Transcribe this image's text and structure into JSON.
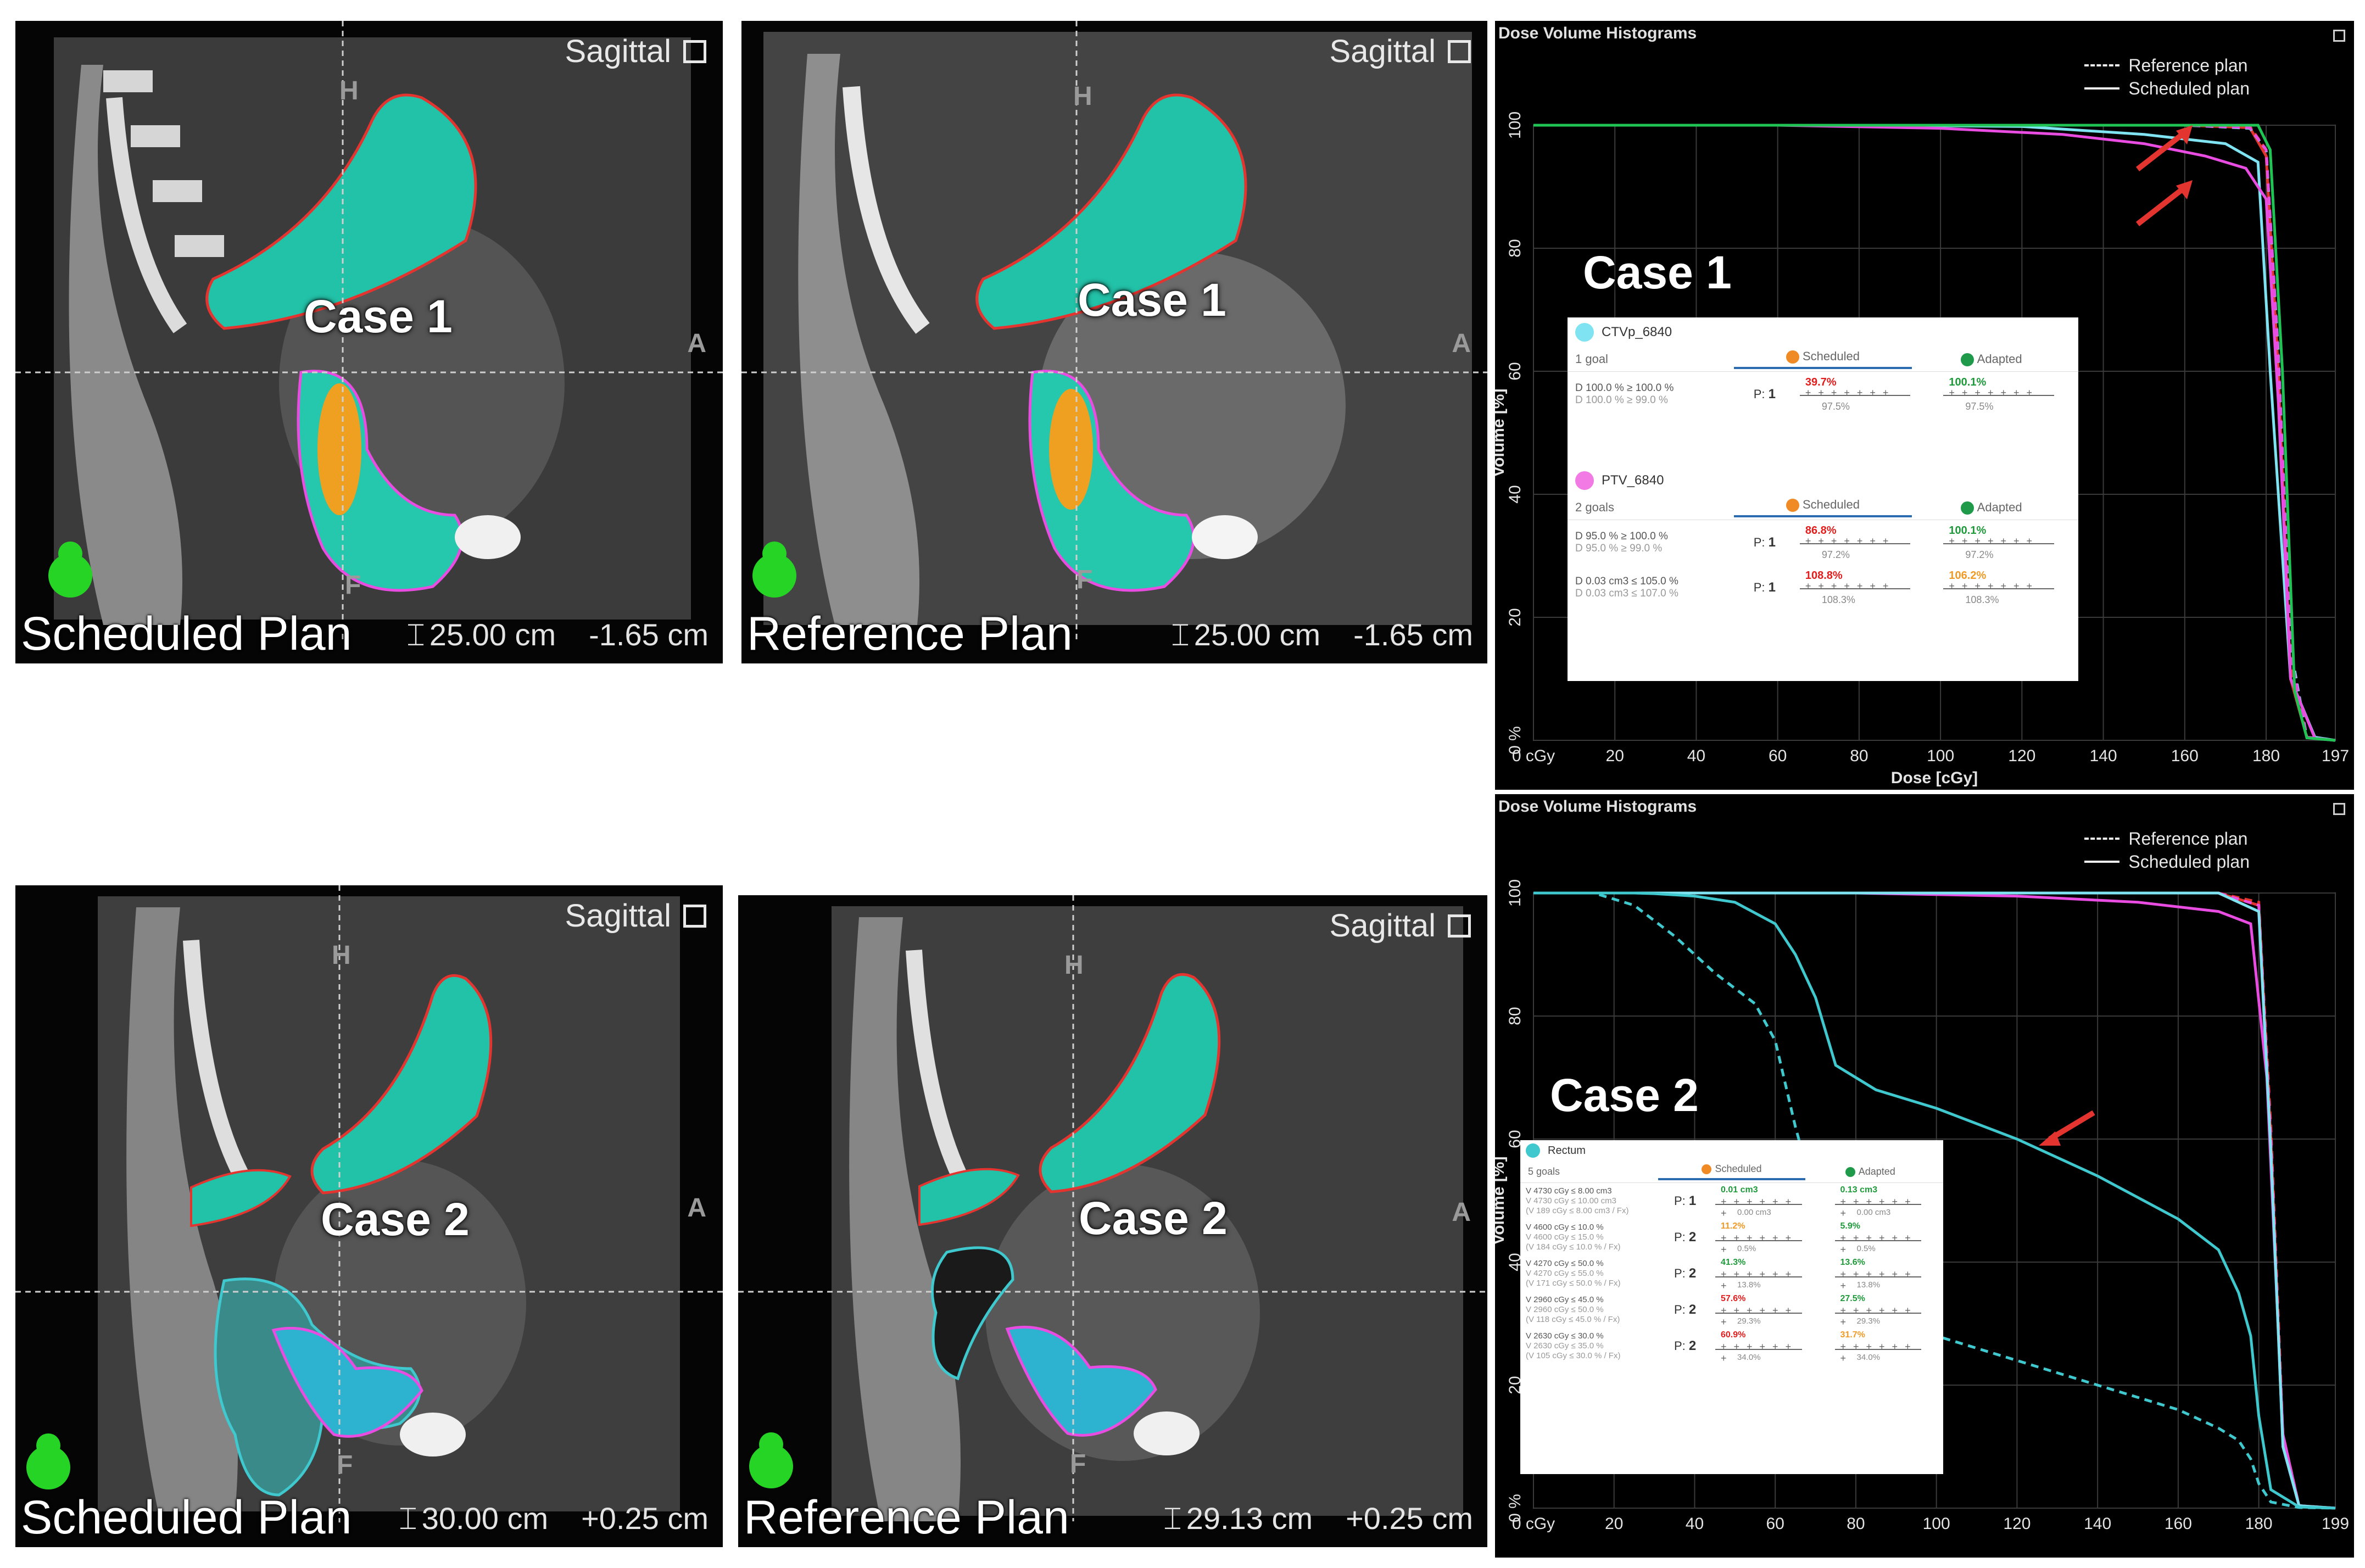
{
  "viewers": [
    {
      "id": "v1",
      "case": "Case 1",
      "viewport": "Sagittal",
      "plan": "Scheduled Plan",
      "slab": "25.00 cm",
      "offset": "-1.65 cm",
      "orient_h": "H",
      "orient_f": "F",
      "orient_a": "A"
    },
    {
      "id": "v2",
      "case": "Case 1",
      "viewport": "Sagittal",
      "plan": "Reference Plan",
      "slab": "25.00 cm",
      "offset": "-1.65 cm",
      "orient_h": "H",
      "orient_f": "F",
      "orient_a": "A"
    },
    {
      "id": "v3",
      "case": "Case 2",
      "viewport": "Sagittal",
      "plan": "Scheduled Plan",
      "slab": "30.00 cm",
      "offset": "+0.25 cm",
      "orient_h": "H",
      "orient_f": "F",
      "orient_a": "A"
    },
    {
      "id": "v4",
      "case": "Case 2",
      "viewport": "Sagittal",
      "plan": "Reference Plan",
      "slab": "29.13 cm",
      "offset": "+0.25 cm",
      "orient_h": "H",
      "orient_f": "F",
      "orient_a": "A"
    }
  ],
  "dvh1": {
    "title": "Dose Volume Histograms",
    "case": "Case 1",
    "legend": {
      "reference": "Reference plan",
      "scheduled": "Scheduled plan"
    },
    "xticks": [
      "0 cGy",
      "20",
      "40",
      "60",
      "80",
      "100",
      "120",
      "140",
      "160",
      "180",
      "197"
    ],
    "yticks": [
      "100",
      "80",
      "60",
      "40",
      "20",
      "0 %"
    ],
    "xlabel": "Dose [cGy]",
    "ylabel": "Volume [%]",
    "goals": [
      {
        "structure": "CTVp_6840",
        "color": "#7fe3f2",
        "count": "1 goal",
        "scheduled": "Scheduled",
        "adapted": "Adapted",
        "rows": [
          {
            "goal": "D 100.0 % ≥ 100.0 %",
            "sub": "D 100.0 % ≥ 99.0 %",
            "prio": "1",
            "sch_val": "39.7%",
            "sch_cls": "red",
            "sch_base": "97.5%",
            "adp_val": "100.1%",
            "adp_cls": "grn",
            "adp_base": "97.5%"
          }
        ]
      },
      {
        "structure": "PTV_6840",
        "color": "#f27ae4",
        "count": "2 goals",
        "scheduled": "Scheduled",
        "adapted": "Adapted",
        "rows": [
          {
            "goal": "D 95.0 % ≥ 100.0 %",
            "sub": "D 95.0 % ≥ 99.0 %",
            "prio": "1",
            "sch_val": "86.8%",
            "sch_cls": "red",
            "sch_base": "97.2%",
            "adp_val": "100.1%",
            "adp_cls": "grn",
            "adp_base": "97.2%"
          },
          {
            "goal": "D 0.03 cm3 ≤ 105.0 %",
            "sub": "D 0.03 cm3 ≤ 107.0 %",
            "prio": "1",
            "sch_val": "108.8%",
            "sch_cls": "red",
            "sch_base": "108.3%",
            "adp_val": "106.2%",
            "adp_cls": "org",
            "adp_base": "108.3%"
          }
        ]
      }
    ]
  },
  "dvh2": {
    "title": "Dose Volume Histograms",
    "case": "Case 2",
    "legend": {
      "reference": "Reference plan",
      "scheduled": "Scheduled plan"
    },
    "xticks": [
      "0 cGy",
      "20",
      "40",
      "60",
      "80",
      "100",
      "120",
      "140",
      "160",
      "180",
      "199"
    ],
    "yticks": [
      "100",
      "80",
      "60",
      "40",
      "20",
      "0 %"
    ],
    "ylabel": "Volume [%]",
    "goals": {
      "structure": "Rectum",
      "color": "#3fc9cf",
      "count": "5 goals",
      "scheduled": "Scheduled",
      "adapted": "Adapted",
      "rows": [
        {
          "goal": "V 4730 cGy ≤ 8.00 cm3",
          "sub": "V 4730 cGy ≤ 10.00 cm3",
          "sub2": "(V 189 cGy ≤ 8.00 cm3 / Fx)",
          "prio": "1",
          "sch_val": "0.01 cm3",
          "sch_cls": "grn",
          "sch_base": "0.00 cm3",
          "adp_val": "0.13 cm3",
          "adp_cls": "grn",
          "adp_base": "0.00 cm3"
        },
        {
          "goal": "V 4600 cGy ≤ 10.0 %",
          "sub": "V 4600 cGy ≤ 15.0 %",
          "sub2": "(V 184 cGy ≤ 10.0 % / Fx)",
          "prio": "2",
          "sch_val": "11.2%",
          "sch_cls": "org",
          "sch_base": "0.5%",
          "adp_val": "5.9%",
          "adp_cls": "grn",
          "adp_base": "0.5%"
        },
        {
          "goal": "V 4270 cGy ≤ 50.0 %",
          "sub": "V 4270 cGy ≤ 55.0 %",
          "sub2": "(V 171 cGy ≤ 50.0 % / Fx)",
          "prio": "2",
          "sch_val": "41.3%",
          "sch_cls": "grn",
          "sch_base": "13.8%",
          "adp_val": "13.6%",
          "adp_cls": "grn",
          "adp_base": "13.8%"
        },
        {
          "goal": "V 2960 cGy ≤ 45.0 %",
          "sub": "V 2960 cGy ≤ 50.0 %",
          "sub2": "(V 118 cGy ≤ 45.0 % / Fx)",
          "prio": "2",
          "sch_val": "57.6%",
          "sch_cls": "red",
          "sch_base": "29.3%",
          "adp_val": "27.5%",
          "adp_cls": "grn",
          "adp_base": "29.3%"
        },
        {
          "goal": "V 2630 cGy ≤ 30.0 %",
          "sub": "V 2630 cGy ≤ 35.0 %",
          "sub2": "(V 105 cGy ≤ 30.0 % / Fx)",
          "prio": "2",
          "sch_val": "60.9%",
          "sch_cls": "red",
          "sch_base": "34.0%",
          "adp_val": "31.7%",
          "adp_cls": "org",
          "adp_base": "34.0%"
        }
      ]
    }
  },
  "colors": {
    "ptv": "#e3342f",
    "ctv": "#7fe3f2",
    "rectum": "#3fc9cf",
    "bladder": "#e84ce0",
    "dose": "#27e0a0"
  },
  "chart_data": [
    {
      "type": "line",
      "title": "Dose Volume Histograms",
      "xlabel": "Dose [cGy]",
      "ylabel": "Volume [%]",
      "xlim": [
        0,
        197
      ],
      "ylim": [
        0,
        100
      ],
      "legend": "top-right",
      "series": [
        {
          "color": "#e3342f",
          "style": "solid",
          "x": [
            0,
            120,
            160,
            176,
            180,
            183,
            186,
            190,
            197
          ],
          "y": [
            100,
            100,
            100,
            99.6,
            95,
            60,
            10,
            0.5,
            0
          ]
        },
        {
          "color": "#e3342f",
          "style": "dashed",
          "x": [
            0,
            120,
            160,
            176,
            180,
            183,
            186,
            190,
            197
          ],
          "y": [
            100,
            100,
            100,
            99.8,
            96,
            62,
            12,
            0.5,
            0
          ]
        },
        {
          "color": "#7fe3f2",
          "style": "solid",
          "x": [
            0,
            80,
            120,
            150,
            170,
            178,
            181,
            186,
            192,
            197
          ],
          "y": [
            100,
            100,
            99.8,
            98.5,
            97,
            94,
            60,
            10,
            0.5,
            0
          ]
        },
        {
          "color": "#7fe3f2",
          "style": "dashed",
          "x": [
            0,
            120,
            160,
            176,
            180,
            183,
            186,
            190,
            197
          ],
          "y": [
            100,
            100,
            100,
            99.5,
            96,
            63,
            15,
            0.5,
            0
          ]
        },
        {
          "color": "#e84ce0",
          "style": "solid",
          "x": [
            0,
            60,
            100,
            130,
            150,
            165,
            175,
            180,
            183,
            186,
            192,
            197
          ],
          "y": [
            100,
            100,
            99.5,
            98.5,
            97,
            95,
            93,
            88,
            55,
            10,
            0.3,
            0
          ]
        },
        {
          "color": "#e84ce0",
          "style": "dashed",
          "x": [
            0,
            120,
            160,
            176,
            180,
            183,
            186,
            190,
            197
          ],
          "y": [
            100,
            100,
            100,
            99.6,
            96,
            62,
            14,
            0.5,
            0
          ]
        },
        {
          "color": "#1fc454",
          "style": "solid",
          "x": [
            0,
            120,
            160,
            178,
            181,
            184,
            187,
            190,
            197
          ],
          "y": [
            100,
            100,
            100,
            100,
            96,
            60,
            8,
            0.4,
            0
          ]
        }
      ]
    },
    {
      "type": "line",
      "title": "Dose Volume Histograms",
      "ylabel": "Volume [%]",
      "xlim": [
        0,
        199
      ],
      "ylim": [
        0,
        100
      ],
      "legend": "top-right",
      "series": [
        {
          "color": "#e3342f",
          "style": "solid",
          "x": [
            0,
            120,
            170,
            180,
            183,
            186,
            190,
            199
          ],
          "y": [
            100,
            100,
            100,
            98,
            60,
            10,
            0.4,
            0
          ]
        },
        {
          "color": "#e3342f",
          "style": "dashed",
          "x": [
            0,
            120,
            170,
            180,
            183,
            186,
            190,
            199
          ],
          "y": [
            100,
            100,
            100,
            98.5,
            62,
            12,
            0.4,
            0
          ]
        },
        {
          "color": "#e84ce0",
          "style": "solid",
          "x": [
            0,
            80,
            120,
            150,
            170,
            178,
            182,
            186,
            190,
            199
          ],
          "y": [
            100,
            100,
            99.5,
            98.5,
            97,
            95,
            70,
            12,
            0.3,
            0
          ]
        },
        {
          "color": "#e84ce0",
          "style": "dashed",
          "x": [
            0,
            120,
            170,
            180,
            183,
            186,
            190,
            199
          ],
          "y": [
            100,
            100,
            100,
            98,
            60,
            10,
            0.4,
            0
          ]
        },
        {
          "color": "#7fe3f2",
          "style": "solid",
          "x": [
            0,
            120,
            170,
            180,
            183,
            186,
            190,
            199
          ],
          "y": [
            100,
            100,
            100,
            97,
            58,
            10,
            0.4,
            0
          ]
        },
        {
          "color": "#3fc9cf",
          "style": "solid",
          "x": [
            0,
            25,
            30,
            40,
            50,
            60,
            65,
            70,
            75,
            85,
            100,
            120,
            140,
            160,
            170,
            175,
            178,
            180,
            183,
            190,
            199
          ],
          "y": [
            100,
            100,
            99.9,
            99.5,
            98.5,
            95,
            90,
            83,
            72,
            68,
            65,
            60,
            54,
            47,
            42,
            35,
            28,
            15,
            3,
            0.2,
            0
          ]
        },
        {
          "color": "#3fc9cf",
          "style": "dashed",
          "x": [
            0,
            15,
            25,
            35,
            45,
            55,
            60,
            65,
            70,
            75,
            80,
            85,
            90,
            100,
            110,
            120,
            140,
            160,
            170,
            175,
            178,
            180,
            183,
            190,
            199
          ],
          "y": [
            100,
            100,
            98,
            93,
            87,
            82,
            76,
            62,
            50,
            42,
            38,
            35,
            32,
            28,
            26,
            24,
            20,
            16,
            13,
            11,
            8,
            4,
            1,
            0.1,
            0
          ]
        }
      ]
    }
  ]
}
